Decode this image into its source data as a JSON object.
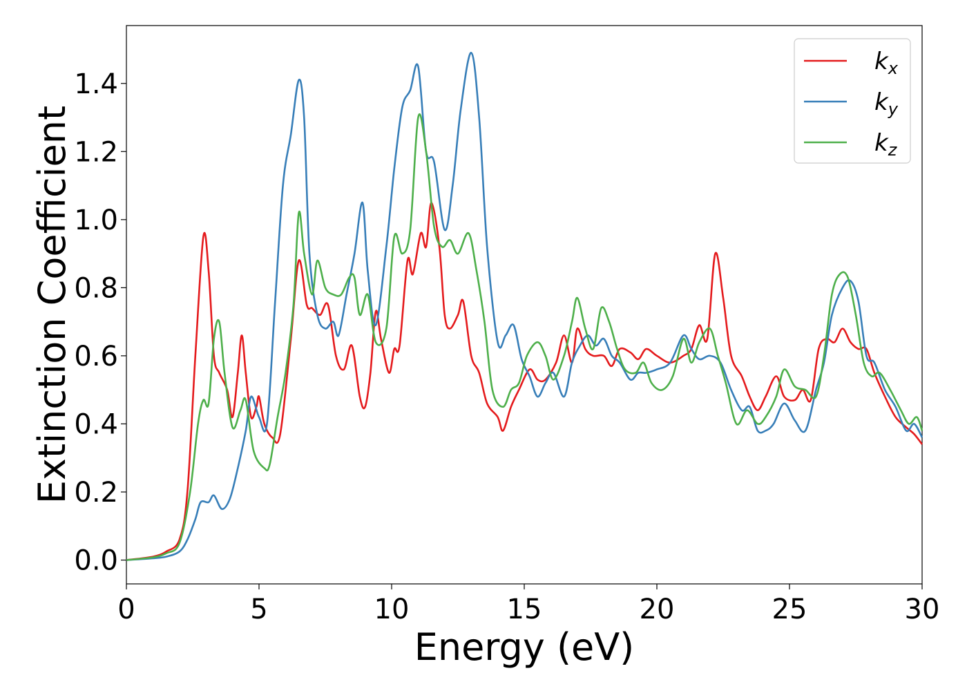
{
  "chart_data": {
    "type": "line",
    "title": "",
    "xlabel": "Energy (eV)",
    "ylabel": "Extinction Coefficient",
    "xlim": [
      0,
      30
    ],
    "ylim": [
      -0.07,
      1.57
    ],
    "xticks": [
      0,
      5,
      10,
      15,
      20,
      25,
      30
    ],
    "xtick_labels": [
      "0",
      "5",
      "10",
      "15",
      "20",
      "25",
      "30"
    ],
    "yticks": [
      0.0,
      0.2,
      0.4,
      0.6,
      0.8,
      1.0,
      1.2,
      1.4
    ],
    "ytick_labels": [
      "0.0",
      "0.2",
      "0.4",
      "0.6",
      "0.8",
      "1.0",
      "1.2",
      "1.4"
    ],
    "grid": false,
    "legend_position": "top-right",
    "series": [
      {
        "name": "k",
        "subscript": "x",
        "color": "#e41a1c",
        "points": [
          [
            0,
            0
          ],
          [
            1,
            0.01
          ],
          [
            1.5,
            0.025
          ],
          [
            2,
            0.06
          ],
          [
            2.3,
            0.2
          ],
          [
            2.6,
            0.6
          ],
          [
            2.9,
            0.95
          ],
          [
            3.1,
            0.85
          ],
          [
            3.3,
            0.6
          ],
          [
            3.5,
            0.55
          ],
          [
            3.8,
            0.5
          ],
          [
            4.0,
            0.42
          ],
          [
            4.2,
            0.55
          ],
          [
            4.35,
            0.66
          ],
          [
            4.5,
            0.55
          ],
          [
            4.7,
            0.42
          ],
          [
            4.9,
            0.45
          ],
          [
            5.0,
            0.48
          ],
          [
            5.2,
            0.4
          ],
          [
            5.5,
            0.36
          ],
          [
            5.8,
            0.37
          ],
          [
            6.2,
            0.65
          ],
          [
            6.5,
            0.88
          ],
          [
            6.8,
            0.75
          ],
          [
            7.0,
            0.74
          ],
          [
            7.3,
            0.72
          ],
          [
            7.6,
            0.75
          ],
          [
            7.9,
            0.6
          ],
          [
            8.2,
            0.56
          ],
          [
            8.5,
            0.63
          ],
          [
            8.8,
            0.48
          ],
          [
            9.0,
            0.45
          ],
          [
            9.2,
            0.55
          ],
          [
            9.4,
            0.73
          ],
          [
            9.6,
            0.65
          ],
          [
            9.9,
            0.55
          ],
          [
            10.1,
            0.62
          ],
          [
            10.3,
            0.63
          ],
          [
            10.6,
            0.88
          ],
          [
            10.8,
            0.84
          ],
          [
            11.1,
            0.96
          ],
          [
            11.3,
            0.92
          ],
          [
            11.5,
            1.05
          ],
          [
            11.8,
            0.92
          ],
          [
            12.0,
            0.72
          ],
          [
            12.2,
            0.68
          ],
          [
            12.5,
            0.72
          ],
          [
            12.7,
            0.76
          ],
          [
            13.0,
            0.6
          ],
          [
            13.3,
            0.55
          ],
          [
            13.6,
            0.46
          ],
          [
            14.0,
            0.42
          ],
          [
            14.2,
            0.38
          ],
          [
            14.5,
            0.45
          ],
          [
            14.8,
            0.5
          ],
          [
            15.2,
            0.56
          ],
          [
            15.5,
            0.53
          ],
          [
            15.8,
            0.53
          ],
          [
            16.2,
            0.58
          ],
          [
            16.5,
            0.66
          ],
          [
            16.8,
            0.58
          ],
          [
            17.0,
            0.68
          ],
          [
            17.3,
            0.62
          ],
          [
            17.6,
            0.6
          ],
          [
            18.0,
            0.6
          ],
          [
            18.3,
            0.57
          ],
          [
            18.6,
            0.62
          ],
          [
            19.0,
            0.61
          ],
          [
            19.3,
            0.59
          ],
          [
            19.6,
            0.62
          ],
          [
            20.0,
            0.6
          ],
          [
            20.5,
            0.58
          ],
          [
            21.0,
            0.6
          ],
          [
            21.3,
            0.62
          ],
          [
            21.6,
            0.69
          ],
          [
            21.9,
            0.65
          ],
          [
            22.2,
            0.9
          ],
          [
            22.5,
            0.77
          ],
          [
            22.8,
            0.6
          ],
          [
            23.2,
            0.54
          ],
          [
            23.5,
            0.48
          ],
          [
            23.8,
            0.44
          ],
          [
            24.1,
            0.48
          ],
          [
            24.5,
            0.54
          ],
          [
            24.8,
            0.48
          ],
          [
            25.2,
            0.47
          ],
          [
            25.5,
            0.5
          ],
          [
            25.8,
            0.47
          ],
          [
            26.1,
            0.62
          ],
          [
            26.4,
            0.65
          ],
          [
            26.7,
            0.64
          ],
          [
            27.0,
            0.68
          ],
          [
            27.3,
            0.64
          ],
          [
            27.6,
            0.62
          ],
          [
            27.9,
            0.62
          ],
          [
            28.2,
            0.55
          ],
          [
            28.6,
            0.48
          ],
          [
            29.0,
            0.42
          ],
          [
            29.4,
            0.39
          ],
          [
            29.7,
            0.37
          ],
          [
            30.0,
            0.34
          ]
        ]
      },
      {
        "name": "k",
        "subscript": "y",
        "color": "#377eb8",
        "points": [
          [
            0,
            0
          ],
          [
            1,
            0.005
          ],
          [
            1.5,
            0.01
          ],
          [
            2.0,
            0.025
          ],
          [
            2.3,
            0.06
          ],
          [
            2.6,
            0.12
          ],
          [
            2.8,
            0.17
          ],
          [
            3.1,
            0.17
          ],
          [
            3.3,
            0.19
          ],
          [
            3.6,
            0.15
          ],
          [
            3.9,
            0.18
          ],
          [
            4.2,
            0.27
          ],
          [
            4.5,
            0.38
          ],
          [
            4.7,
            0.48
          ],
          [
            5.0,
            0.42
          ],
          [
            5.3,
            0.4
          ],
          [
            5.6,
            0.75
          ],
          [
            5.9,
            1.1
          ],
          [
            6.2,
            1.25
          ],
          [
            6.5,
            1.41
          ],
          [
            6.7,
            1.3
          ],
          [
            6.9,
            0.9
          ],
          [
            7.2,
            0.72
          ],
          [
            7.5,
            0.68
          ],
          [
            7.8,
            0.7
          ],
          [
            8.0,
            0.66
          ],
          [
            8.3,
            0.78
          ],
          [
            8.6,
            0.9
          ],
          [
            8.9,
            1.05
          ],
          [
            9.1,
            0.85
          ],
          [
            9.4,
            0.69
          ],
          [
            9.8,
            0.92
          ],
          [
            10.1,
            1.15
          ],
          [
            10.4,
            1.33
          ],
          [
            10.7,
            1.38
          ],
          [
            11.0,
            1.45
          ],
          [
            11.3,
            1.2
          ],
          [
            11.6,
            1.17
          ],
          [
            12.0,
            0.97
          ],
          [
            12.3,
            1.1
          ],
          [
            12.6,
            1.32
          ],
          [
            13.0,
            1.49
          ],
          [
            13.3,
            1.3
          ],
          [
            13.6,
            0.92
          ],
          [
            14.0,
            0.64
          ],
          [
            14.3,
            0.66
          ],
          [
            14.6,
            0.69
          ],
          [
            14.9,
            0.59
          ],
          [
            15.2,
            0.54
          ],
          [
            15.5,
            0.48
          ],
          [
            15.8,
            0.52
          ],
          [
            16.1,
            0.55
          ],
          [
            16.5,
            0.48
          ],
          [
            16.8,
            0.58
          ],
          [
            17.1,
            0.63
          ],
          [
            17.4,
            0.66
          ],
          [
            17.7,
            0.63
          ],
          [
            18.0,
            0.65
          ],
          [
            18.3,
            0.6
          ],
          [
            18.6,
            0.58
          ],
          [
            19.0,
            0.53
          ],
          [
            19.3,
            0.55
          ],
          [
            19.6,
            0.55
          ],
          [
            20.0,
            0.56
          ],
          [
            20.5,
            0.58
          ],
          [
            21.0,
            0.66
          ],
          [
            21.3,
            0.62
          ],
          [
            21.6,
            0.59
          ],
          [
            22.0,
            0.6
          ],
          [
            22.4,
            0.58
          ],
          [
            22.8,
            0.5
          ],
          [
            23.2,
            0.44
          ],
          [
            23.5,
            0.45
          ],
          [
            23.8,
            0.38
          ],
          [
            24.1,
            0.38
          ],
          [
            24.4,
            0.4
          ],
          [
            24.8,
            0.46
          ],
          [
            25.2,
            0.41
          ],
          [
            25.6,
            0.38
          ],
          [
            26.0,
            0.5
          ],
          [
            26.3,
            0.58
          ],
          [
            26.6,
            0.72
          ],
          [
            27.0,
            0.8
          ],
          [
            27.3,
            0.82
          ],
          [
            27.6,
            0.76
          ],
          [
            27.9,
            0.6
          ],
          [
            28.2,
            0.58
          ],
          [
            28.6,
            0.5
          ],
          [
            29.0,
            0.45
          ],
          [
            29.4,
            0.38
          ],
          [
            29.7,
            0.4
          ],
          [
            30.0,
            0.36
          ]
        ]
      },
      {
        "name": "k",
        "subscript": "z",
        "color": "#4daf4a",
        "points": [
          [
            0,
            0
          ],
          [
            1,
            0.008
          ],
          [
            1.5,
            0.02
          ],
          [
            2.0,
            0.05
          ],
          [
            2.4,
            0.2
          ],
          [
            2.7,
            0.4
          ],
          [
            2.9,
            0.47
          ],
          [
            3.1,
            0.46
          ],
          [
            3.3,
            0.65
          ],
          [
            3.5,
            0.7
          ],
          [
            3.7,
            0.55
          ],
          [
            4.0,
            0.39
          ],
          [
            4.3,
            0.44
          ],
          [
            4.5,
            0.47
          ],
          [
            4.8,
            0.32
          ],
          [
            5.2,
            0.27
          ],
          [
            5.4,
            0.28
          ],
          [
            5.7,
            0.42
          ],
          [
            6.0,
            0.55
          ],
          [
            6.3,
            0.75
          ],
          [
            6.5,
            1.02
          ],
          [
            6.7,
            0.9
          ],
          [
            7.0,
            0.78
          ],
          [
            7.2,
            0.88
          ],
          [
            7.5,
            0.8
          ],
          [
            7.8,
            0.78
          ],
          [
            8.1,
            0.78
          ],
          [
            8.4,
            0.83
          ],
          [
            8.6,
            0.83
          ],
          [
            8.8,
            0.72
          ],
          [
            9.1,
            0.78
          ],
          [
            9.4,
            0.64
          ],
          [
            9.8,
            0.68
          ],
          [
            10.1,
            0.95
          ],
          [
            10.4,
            0.9
          ],
          [
            10.7,
            0.97
          ],
          [
            11.0,
            1.3
          ],
          [
            11.3,
            1.2
          ],
          [
            11.6,
            0.98
          ],
          [
            11.9,
            0.92
          ],
          [
            12.2,
            0.94
          ],
          [
            12.5,
            0.9
          ],
          [
            12.9,
            0.96
          ],
          [
            13.2,
            0.85
          ],
          [
            13.5,
            0.7
          ],
          [
            13.8,
            0.5
          ],
          [
            14.2,
            0.45
          ],
          [
            14.5,
            0.5
          ],
          [
            14.8,
            0.52
          ],
          [
            15.1,
            0.6
          ],
          [
            15.5,
            0.64
          ],
          [
            15.8,
            0.6
          ],
          [
            16.1,
            0.53
          ],
          [
            16.5,
            0.6
          ],
          [
            16.8,
            0.7
          ],
          [
            17.0,
            0.77
          ],
          [
            17.3,
            0.68
          ],
          [
            17.6,
            0.62
          ],
          [
            17.9,
            0.74
          ],
          [
            18.2,
            0.7
          ],
          [
            18.5,
            0.62
          ],
          [
            18.8,
            0.56
          ],
          [
            19.2,
            0.55
          ],
          [
            19.5,
            0.58
          ],
          [
            19.8,
            0.52
          ],
          [
            20.2,
            0.5
          ],
          [
            20.6,
            0.54
          ],
          [
            21.0,
            0.65
          ],
          [
            21.3,
            0.58
          ],
          [
            21.6,
            0.64
          ],
          [
            22.0,
            0.68
          ],
          [
            22.3,
            0.6
          ],
          [
            22.6,
            0.52
          ],
          [
            23.0,
            0.4
          ],
          [
            23.4,
            0.44
          ],
          [
            23.8,
            0.4
          ],
          [
            24.1,
            0.42
          ],
          [
            24.5,
            0.48
          ],
          [
            24.8,
            0.56
          ],
          [
            25.2,
            0.51
          ],
          [
            25.6,
            0.5
          ],
          [
            26.0,
            0.48
          ],
          [
            26.3,
            0.6
          ],
          [
            26.6,
            0.78
          ],
          [
            26.9,
            0.84
          ],
          [
            27.2,
            0.83
          ],
          [
            27.5,
            0.72
          ],
          [
            27.8,
            0.58
          ],
          [
            28.1,
            0.54
          ],
          [
            28.4,
            0.55
          ],
          [
            28.8,
            0.5
          ],
          [
            29.2,
            0.44
          ],
          [
            29.5,
            0.4
          ],
          [
            29.8,
            0.42
          ],
          [
            30.0,
            0.38
          ]
        ]
      }
    ]
  }
}
